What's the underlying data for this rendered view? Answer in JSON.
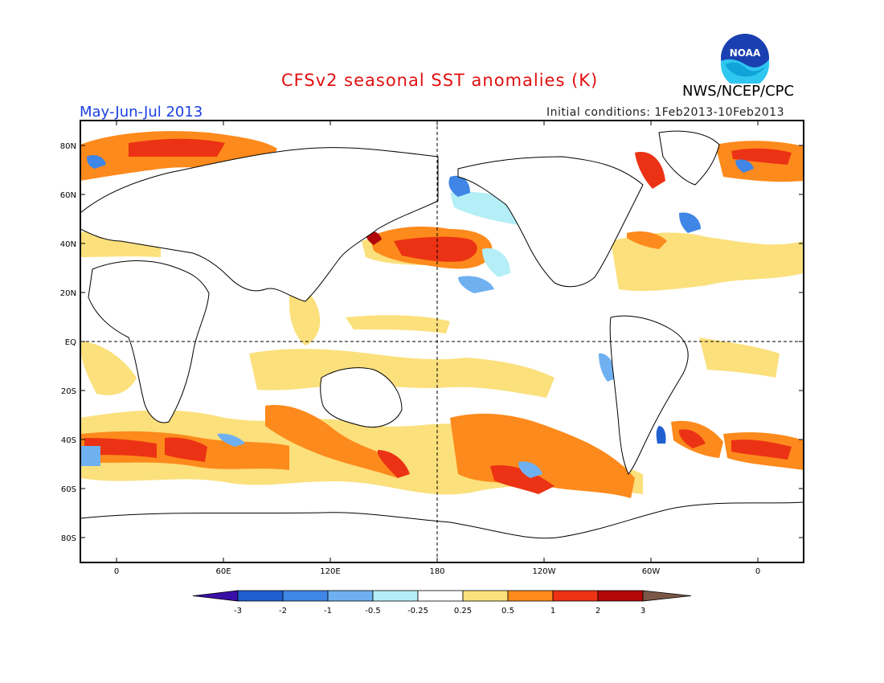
{
  "header": {
    "title": "CFSv2 seasonal SST anomalies (K)",
    "season": "May-Jun-Jul 2013",
    "initial_conditions": "Initial conditions: 1Feb2013-10Feb2013",
    "agency": "NWS/NCEP/CPC",
    "logo_text": "NOAA"
  },
  "map": {
    "lat_labels": [
      "80N",
      "60N",
      "40N",
      "20N",
      "EQ",
      "20S",
      "40S",
      "60S",
      "80S"
    ],
    "lon_labels": [
      "0",
      "60E",
      "120E",
      "180",
      "120W",
      "60W",
      "0"
    ]
  },
  "colorbar": {
    "labels": [
      "-3",
      "-2",
      "-1",
      "-0.5",
      "-0.25",
      "0.25",
      "0.5",
      "1",
      "2",
      "3"
    ],
    "colors": [
      "#3a0fa8",
      "#1f5fd0",
      "#3f86e6",
      "#6fb0f0",
      "#b4eef6",
      "#ffffff",
      "#fbe07c",
      "#fd8a1c",
      "#ec3214",
      "#b20808",
      "#7a5746"
    ]
  }
}
